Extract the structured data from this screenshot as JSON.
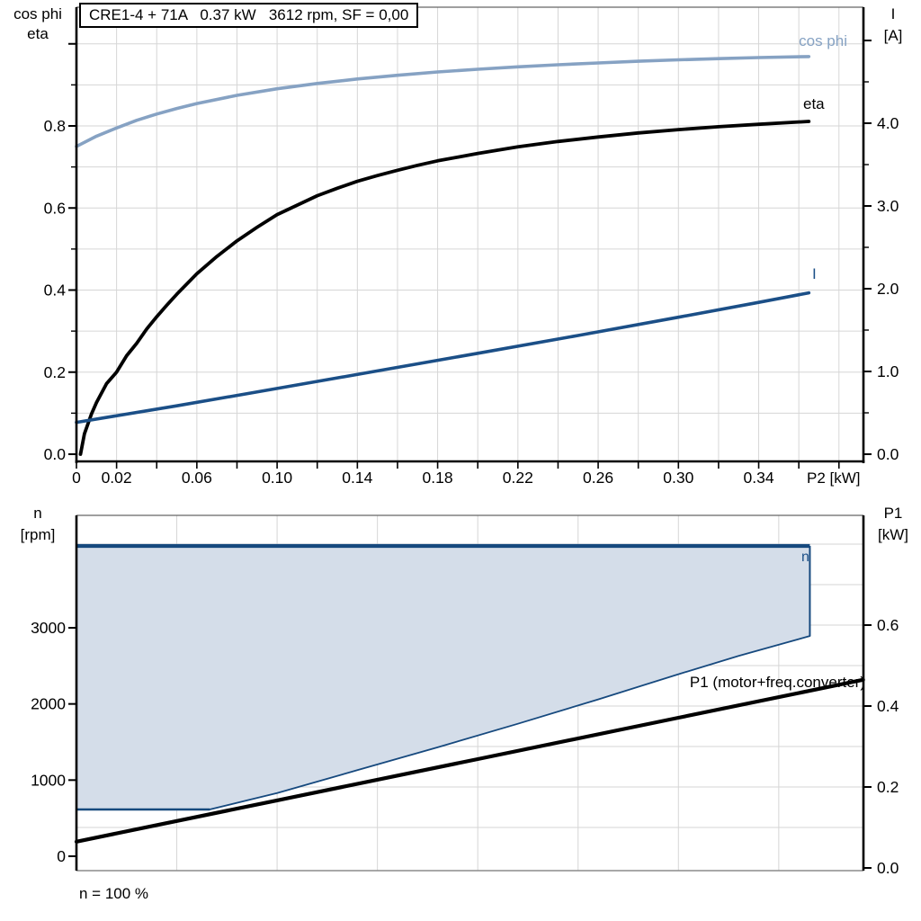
{
  "page": {
    "background": "#ffffff"
  },
  "title_box": {
    "text": "CRE1-4 + 71A   0.37 kW   3612 rpm, SF = 0,00"
  },
  "labels": {
    "top_left_1": "cos phi",
    "top_left_2": "eta",
    "top_right_1": "I",
    "top_right_2": "[A]",
    "x_axis_title": "P2 [kW]",
    "bottom_left_1": "n",
    "bottom_left_2": "[rpm]",
    "bottom_right_1": "P1",
    "bottom_right_2": "[kW]",
    "cos_phi_curve": "cos phi",
    "eta_curve": "eta",
    "current_curve": "I",
    "n_curve": "n",
    "p1_curve": "P1 (motor+freq.converter)",
    "note": "n = 100 %"
  },
  "colors": {
    "cos_phi": "#86a2c3",
    "current": "#1b4f87",
    "eta": "#000000",
    "envelope_fill": "#d4dde9",
    "envelope_stroke": "#16497e",
    "p1_line": "#000000",
    "grid": "#d6d6d6",
    "axis": "#000000",
    "frame_gray": "#8c8c8c",
    "frame_top": "#666666"
  },
  "chart_data": [
    {
      "type": "line",
      "title": "CRE1-4 + 71A  0.37 kW  3612 rpm, SF = 0,00",
      "xlabel": "P2 [kW]",
      "x_range": [
        0,
        0.392
      ],
      "x_tick_step": 0.02,
      "x_tick_max": 0.38,
      "x_tick_labels": [
        {
          "value": 0,
          "text": "0"
        },
        {
          "value": 0.02,
          "text": "0.02"
        },
        {
          "value": 0.06,
          "text": "0.06"
        },
        {
          "value": 0.1,
          "text": "0.10"
        },
        {
          "value": 0.14,
          "text": "0.14"
        },
        {
          "value": 0.18,
          "text": "0.18"
        },
        {
          "value": 0.22,
          "text": "0.22"
        },
        {
          "value": 0.26,
          "text": "0.26"
        },
        {
          "value": 0.3,
          "text": "0.30"
        },
        {
          "value": 0.34,
          "text": "0.34"
        }
      ],
      "left_axis": {
        "label": "cos phi / eta",
        "range": [
          0,
          1.09
        ],
        "major_tick_step": 0.2,
        "minor_tick_step": 0.1,
        "tick_labels": [
          "0.0",
          "0.2",
          "0.4",
          "0.6",
          "0.8"
        ],
        "grid_step": 0.1
      },
      "right_axis": {
        "label": "I [A]",
        "range": [
          0,
          5.4
        ],
        "major_tick_step": 1.0,
        "minor_tick_step": 0.5,
        "tick_labels": [
          "0.0",
          "1.0",
          "2.0",
          "3.0",
          "4.0"
        ]
      },
      "grid": true,
      "series": [
        {
          "name": "cos phi",
          "axis": "left",
          "color_key": "cos_phi",
          "width": 3.6,
          "points": [
            [
              0,
              0.75
            ],
            [
              0.01,
              0.775
            ],
            [
              0.02,
              0.795
            ],
            [
              0.03,
              0.8135
            ],
            [
              0.04,
              0.829
            ],
            [
              0.05,
              0.8425
            ],
            [
              0.06,
              0.8545
            ],
            [
              0.08,
              0.8745
            ],
            [
              0.1,
              0.8905
            ],
            [
              0.12,
              0.9035
            ],
            [
              0.14,
              0.9145
            ],
            [
              0.16,
              0.9235
            ],
            [
              0.18,
              0.9315
            ],
            [
              0.2,
              0.938
            ],
            [
              0.22,
              0.944
            ],
            [
              0.24,
              0.949
            ],
            [
              0.26,
              0.9535
            ],
            [
              0.28,
              0.9575
            ],
            [
              0.3,
              0.961
            ],
            [
              0.32,
              0.964
            ],
            [
              0.34,
              0.9665
            ],
            [
              0.365,
              0.969
            ]
          ]
        },
        {
          "name": "eta",
          "axis": "left",
          "color_key": "eta",
          "width": 3.8,
          "points": [
            [
              0.002,
              0
            ],
            [
              0.004,
              0.05
            ],
            [
              0.0075,
              0.098
            ],
            [
              0.01,
              0.126
            ],
            [
              0.015,
              0.172
            ],
            [
              0.02,
              0.2
            ],
            [
              0.025,
              0.24
            ],
            [
              0.03,
              0.27
            ],
            [
              0.035,
              0.305
            ],
            [
              0.04,
              0.335
            ],
            [
              0.045,
              0.363
            ],
            [
              0.05,
              0.39
            ],
            [
              0.06,
              0.44
            ],
            [
              0.07,
              0.482
            ],
            [
              0.08,
              0.52
            ],
            [
              0.09,
              0.553
            ],
            [
              0.1,
              0.584
            ],
            [
              0.11,
              0.607
            ],
            [
              0.12,
              0.63
            ],
            [
              0.13,
              0.648
            ],
            [
              0.14,
              0.665
            ],
            [
              0.15,
              0.679
            ],
            [
              0.16,
              0.692
            ],
            [
              0.17,
              0.704
            ],
            [
              0.18,
              0.715
            ],
            [
              0.19,
              0.724
            ],
            [
              0.2,
              0.733
            ],
            [
              0.22,
              0.749
            ],
            [
              0.24,
              0.762
            ],
            [
              0.26,
              0.773
            ],
            [
              0.28,
              0.783
            ],
            [
              0.3,
              0.791
            ],
            [
              0.32,
              0.798
            ],
            [
              0.34,
              0.804
            ],
            [
              0.365,
              0.811
            ]
          ]
        },
        {
          "name": "I",
          "axis": "right",
          "color_key": "current",
          "width": 3.6,
          "points": [
            [
              0,
              0.385
            ],
            [
              0.05,
              0.585
            ],
            [
              0.1,
              0.795
            ],
            [
              0.15,
              1.006
            ],
            [
              0.2,
              1.22
            ],
            [
              0.25,
              1.435
            ],
            [
              0.3,
              1.655
            ],
            [
              0.34,
              1.835
            ],
            [
              0.365,
              1.95
            ]
          ]
        }
      ]
    },
    {
      "type": "area+line",
      "xlabel": "",
      "x_range": [
        0,
        0.392
      ],
      "x_grid_step": 0.05,
      "left_axis": {
        "label": "n [rpm]",
        "range": [
          0,
          4700
        ],
        "major_tick_step": 1000,
        "tick_labels": [
          "0",
          "1000",
          "2000",
          "3000"
        ]
      },
      "right_axis": {
        "label": "P1 [kW]",
        "range": [
          0,
          0.88
        ],
        "major_tick_step": 0.2,
        "minor_grid_step": 0.1,
        "tick_labels": [
          "0.0",
          "0.2",
          "0.4",
          "0.6"
        ]
      },
      "grid": true,
      "envelope": {
        "name": "n",
        "fill_key": "envelope_fill",
        "stroke_key": "envelope_stroke",
        "n_max_rpm": 4075,
        "n_min_rpm": 614,
        "points_rpm": [
          [
            0,
            4075
          ],
          [
            0.3655,
            4075
          ],
          [
            0.3655,
            2892
          ],
          [
            0.33,
            2630
          ],
          [
            0.3,
            2390
          ],
          [
            0.26,
            2060
          ],
          [
            0.22,
            1740
          ],
          [
            0.18,
            1430
          ],
          [
            0.14,
            1130
          ],
          [
            0.1,
            830
          ],
          [
            0.0664,
            614
          ],
          [
            0,
            614
          ]
        ]
      },
      "p1_line": {
        "name": "P1 (motor+freq.converter)",
        "color_key": "p1_line",
        "width": 4.2,
        "points_kw": [
          [
            0,
            0.065
          ],
          [
            0.1,
            0.167
          ],
          [
            0.2,
            0.269
          ],
          [
            0.3,
            0.371
          ],
          [
            0.392,
            0.465
          ]
        ]
      },
      "note": "n = 100 %"
    }
  ]
}
